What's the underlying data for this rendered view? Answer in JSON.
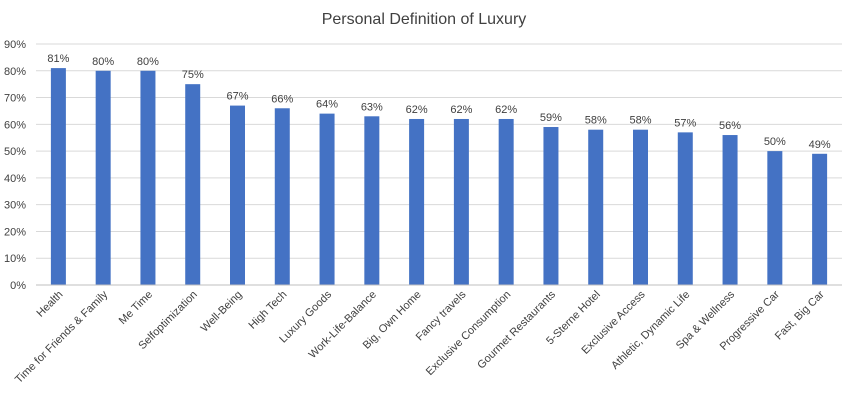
{
  "chart_data": {
    "type": "bar",
    "title": "Personal Definition of Luxury",
    "categories": [
      "Health",
      "Time for Friends & Family",
      "Me Time",
      "Selfoptimization",
      "Well-Being",
      "High Tech",
      "Luxury Goods",
      "Work-Life-Balance",
      "Big, Own Home",
      "Fancy travels",
      "Exclusive Consumption",
      "Gourmet Restaurants",
      "5-Sterne Hotel",
      "Exclusive Access",
      "Athletic, Dynamic Life",
      "Spa & Wellness",
      "Progressive Car",
      "Fast, Big Car"
    ],
    "values": [
      81,
      80,
      80,
      75,
      67,
      66,
      64,
      63,
      62,
      62,
      62,
      59,
      58,
      58,
      57,
      56,
      50,
      49
    ],
    "data_labels": [
      "81%",
      "80%",
      "80%",
      "75%",
      "67%",
      "66%",
      "64%",
      "63%",
      "62%",
      "62%",
      "62%",
      "59%",
      "58%",
      "58%",
      "57%",
      "56%",
      "50%",
      "49%"
    ],
    "yticks": [
      "0%",
      "10%",
      "20%",
      "30%",
      "40%",
      "50%",
      "60%",
      "70%",
      "80%",
      "90%"
    ],
    "ylim": [
      0,
      90
    ],
    "xlabel": "",
    "ylabel": "",
    "grid": true,
    "bar_color": "#4472c4"
  }
}
